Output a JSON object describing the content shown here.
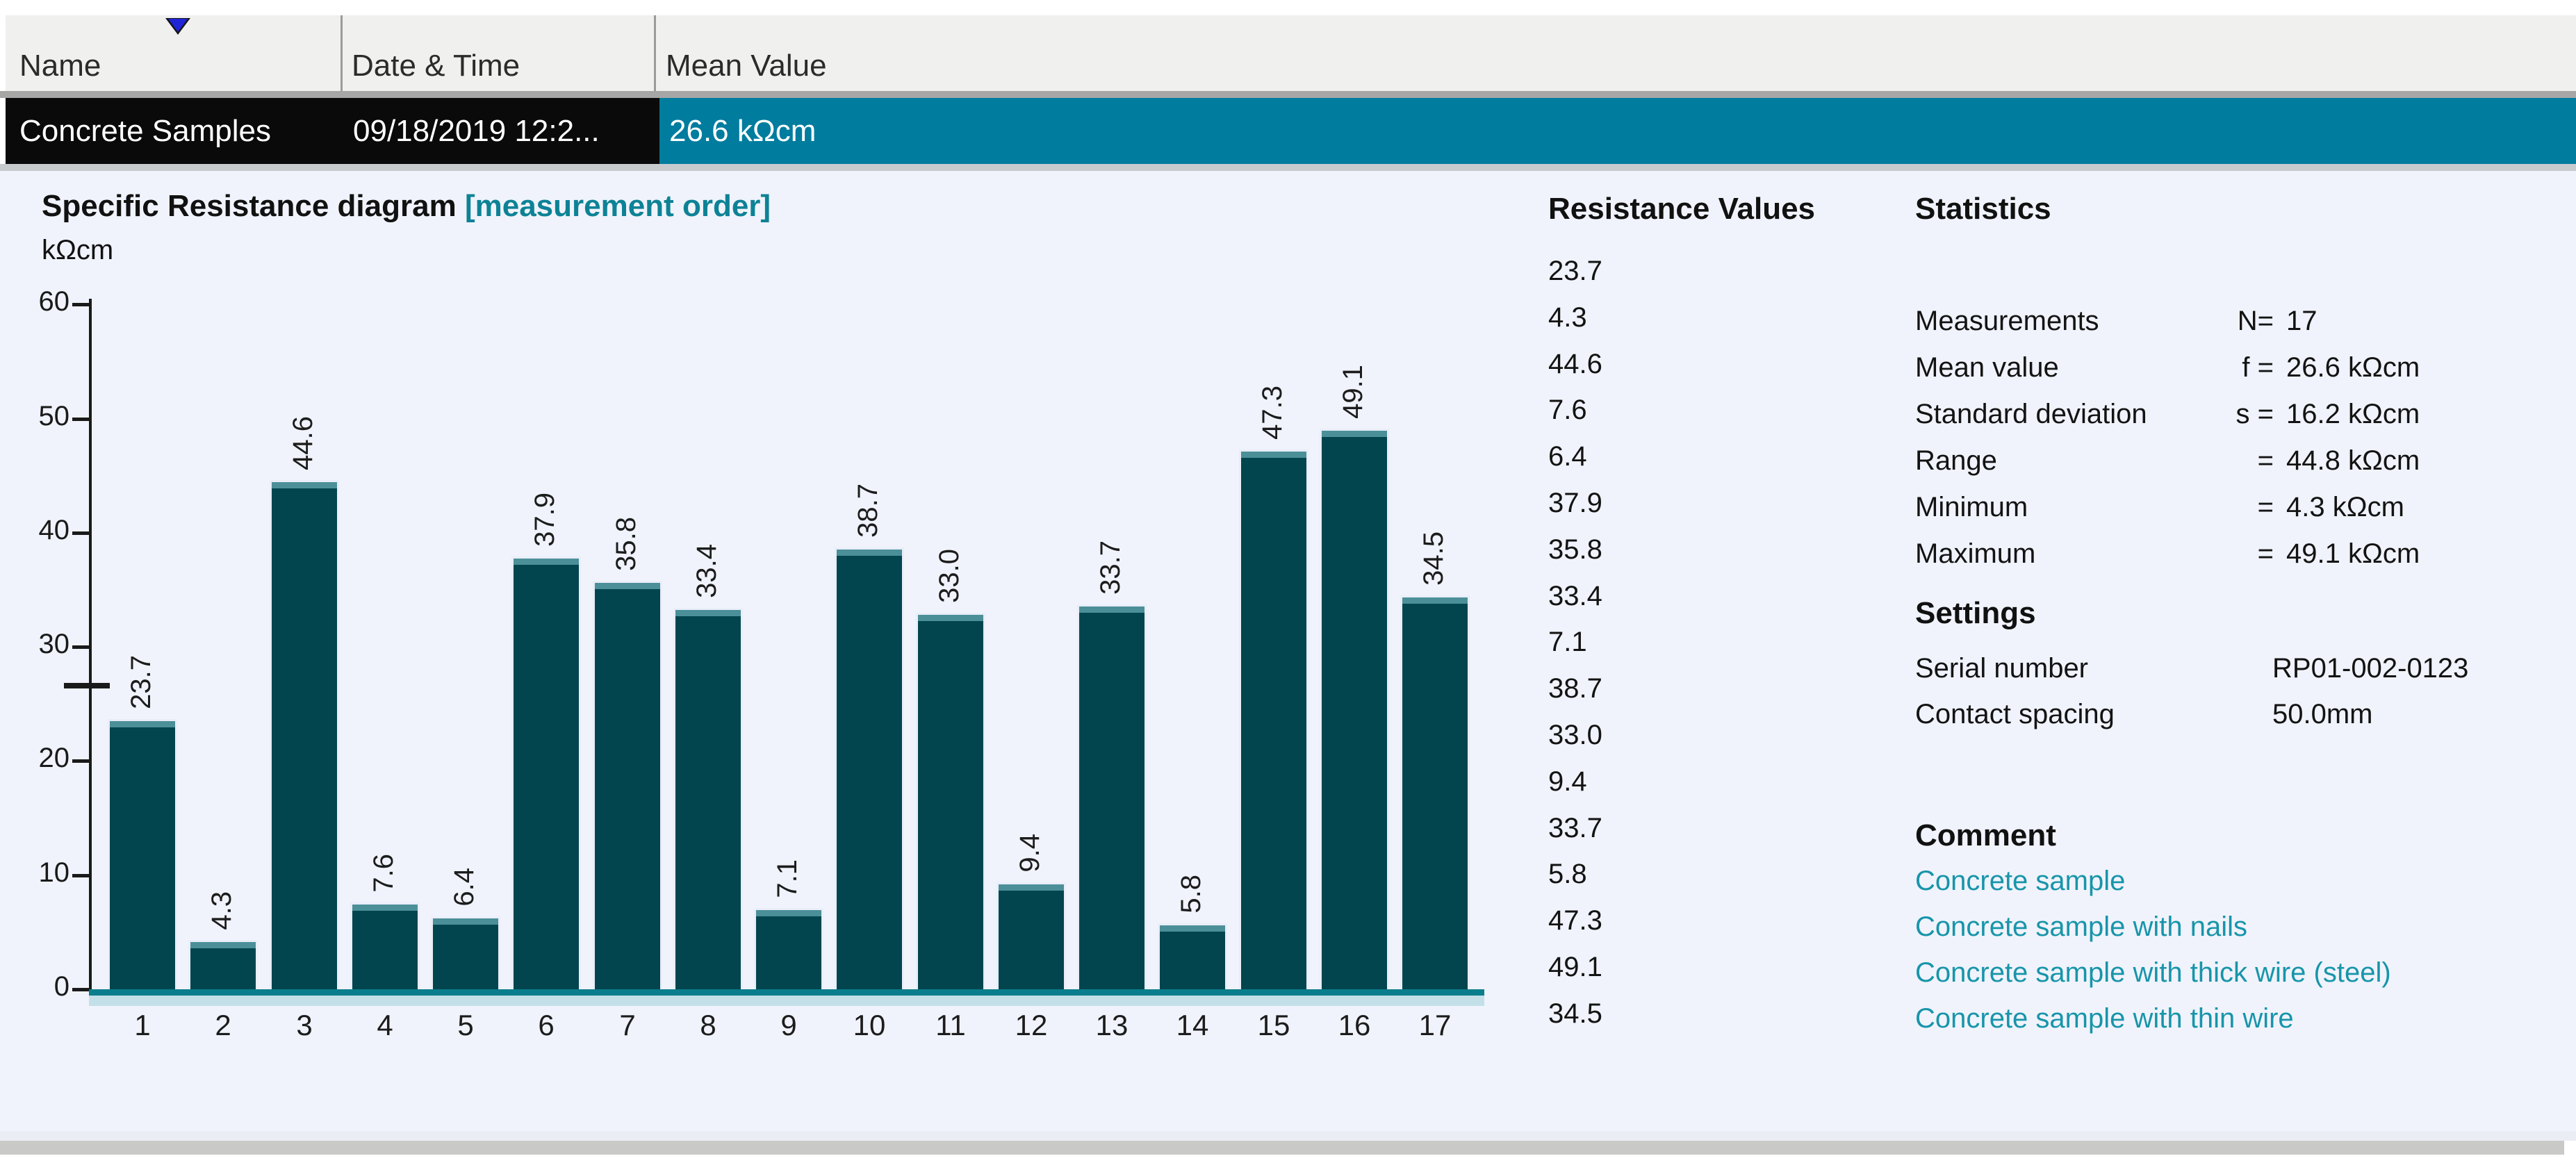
{
  "table": {
    "columns": [
      {
        "label": "Name"
      },
      {
        "label": "Date & Time"
      },
      {
        "label": "Mean Value"
      }
    ],
    "row": {
      "name": "Concrete Samples",
      "datetime": "09/18/2019 12:2...",
      "mean": "26.6 kΩcm"
    }
  },
  "chart": {
    "title": "Specific Resistance diagram",
    "title_suffix": " [measurement order]",
    "unit": "kΩcm"
  },
  "chart_data": {
    "type": "bar",
    "title": "Specific Resistance diagram [measurement order]",
    "xlabel": "",
    "ylabel": "kΩcm",
    "ylim": [
      0,
      60
    ],
    "yticks": [
      0,
      10,
      20,
      30,
      40,
      50,
      60
    ],
    "grid": false,
    "mean_marker": 26.6,
    "categories": [
      "1",
      "2",
      "3",
      "4",
      "5",
      "6",
      "7",
      "8",
      "9",
      "10",
      "11",
      "12",
      "13",
      "14",
      "15",
      "16",
      "17"
    ],
    "values": [
      23.7,
      4.3,
      44.6,
      7.6,
      6.4,
      37.9,
      35.8,
      33.4,
      7.1,
      38.7,
      33.0,
      9.4,
      33.7,
      5.8,
      47.3,
      49.1,
      34.5
    ],
    "value_labels": [
      "23.7",
      "4.3",
      "44.6",
      "7.6",
      "6.4",
      "37.9",
      "35.8",
      "33.4",
      "7.1",
      "38.7",
      "33.0",
      "9.4",
      "33.7",
      "5.8",
      "47.3",
      "49.1",
      "34.5"
    ]
  },
  "values_panel": {
    "title": "Resistance Values",
    "values": [
      "23.7",
      "4.3",
      "44.6",
      "7.6",
      "6.4",
      "37.9",
      "35.8",
      "33.4",
      "7.1",
      "38.7",
      "33.0",
      "9.4",
      "33.7",
      "5.8",
      "47.3",
      "49.1",
      "34.5"
    ]
  },
  "statistics": {
    "title": "Statistics",
    "rows": [
      {
        "label": "Measurements",
        "sym": "N=",
        "value": "17"
      },
      {
        "label": "Mean value",
        "sym": "f =",
        "value": "26.6 kΩcm"
      },
      {
        "label": "Standard deviation",
        "sym": "s =",
        "value": "16.2 kΩcm"
      },
      {
        "label": "Range",
        "sym": "=",
        "value": "44.8 kΩcm"
      },
      {
        "label": "Minimum",
        "sym": "=",
        "value": "4.3 kΩcm"
      },
      {
        "label": "Maximum",
        "sym": "=",
        "value": "49.1 kΩcm"
      }
    ]
  },
  "settings": {
    "title": "Settings",
    "rows": [
      {
        "label": "Serial number",
        "value": "RP01-002-0123"
      },
      {
        "label": "Contact spacing",
        "value": "50.0mm"
      }
    ]
  },
  "comment": {
    "title": "Comment",
    "lines": [
      "Concrete sample",
      "Concrete sample with nails",
      "Concrete sample with thick wire (steel)",
      "Concrete sample with thin wire"
    ]
  },
  "colors": {
    "accent_teal": "#007c9e",
    "bar_fill": "#03454f",
    "bar_cap": "#4b8f98",
    "baseline_teal": "#0a7e8c",
    "baseline_light": "#c3e0e8",
    "comment_teal": "#1795aa",
    "title_teal": "#0d8296",
    "selected_row_black": "#0a0a0a",
    "header_bg": "#f0f0ef",
    "page_bg": "#f0f3fb",
    "sort_arrow_blue": "#1f25d6"
  }
}
